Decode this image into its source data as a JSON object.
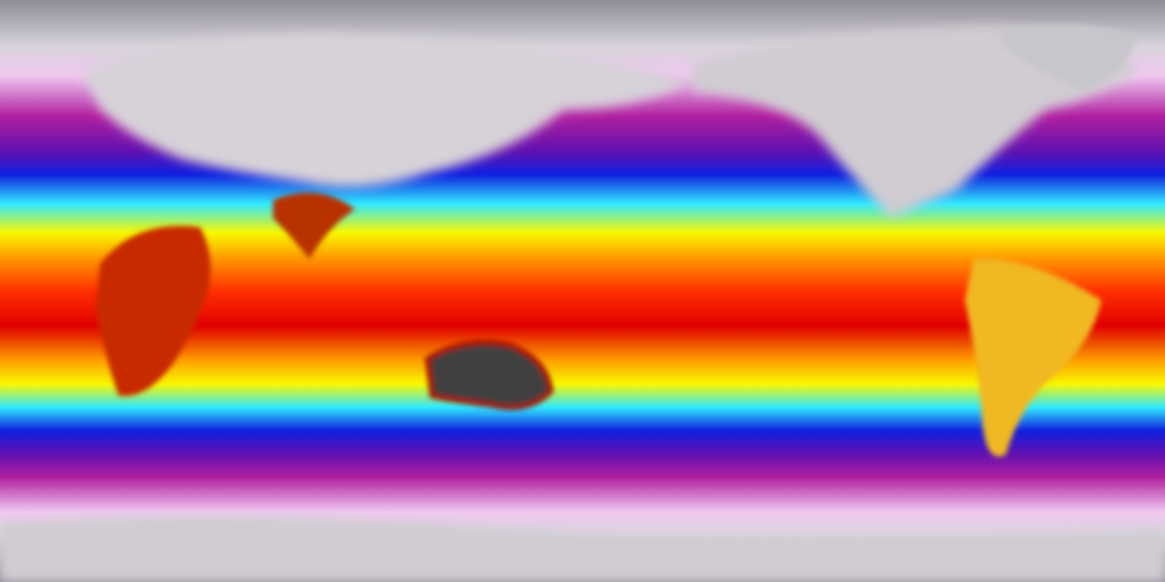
{
  "map": {
    "projection": "equirectangular",
    "colormap": [
      "#8e8a96",
      "#d8d4dc",
      "#f0c8f0",
      "#b020a0",
      "#6010b0",
      "#1020e0",
      "#30e8ff",
      "#f8f800",
      "#ffa000",
      "#ff3000",
      "#e00000"
    ],
    "land_colors": {
      "cold_land": "#dcd8dc",
      "australia_interior": "#404040",
      "africa": "#c02000",
      "south_america": "#f8c020"
    }
  }
}
